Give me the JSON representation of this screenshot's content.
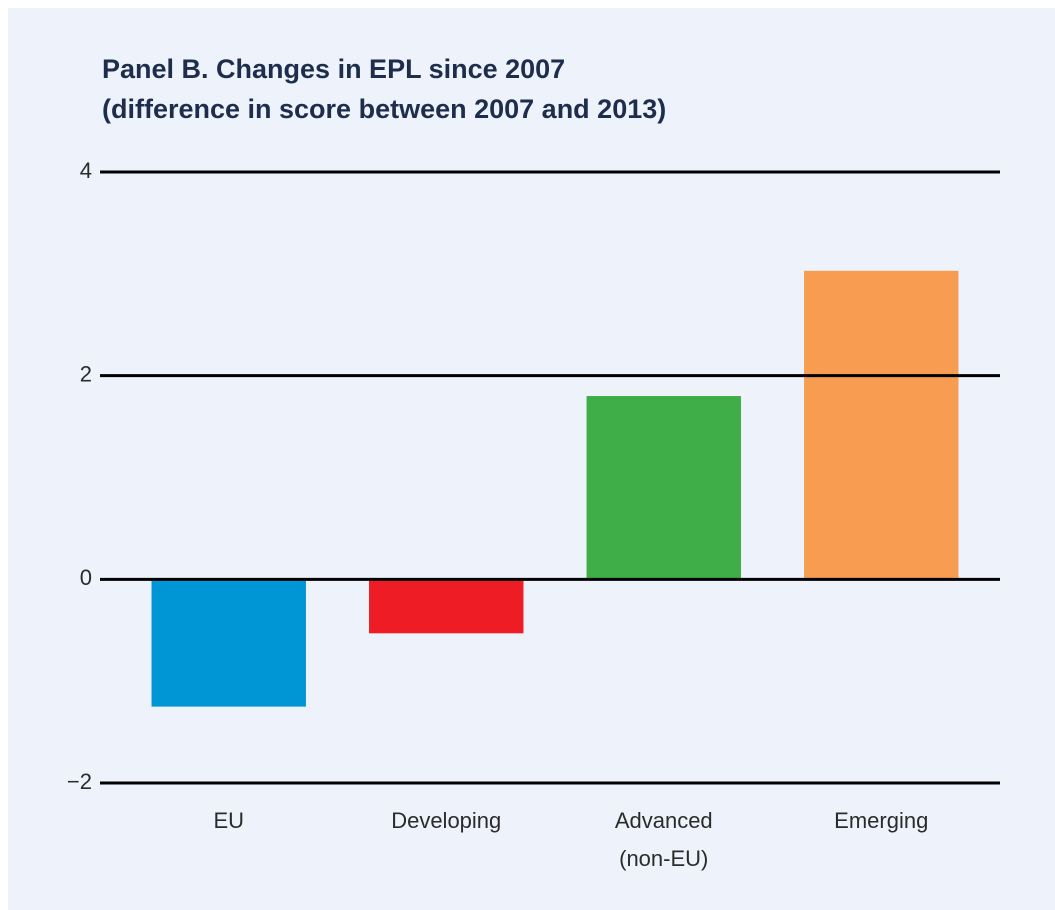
{
  "chart_data": {
    "type": "bar",
    "title": "Panel B.  Changes in EPL since 2007",
    "subtitle": "(difference in score between 2007 and 2013)",
    "categories": [
      "EU",
      "Developing",
      "Advanced (non-EU)",
      "Emerging"
    ],
    "values": [
      -1.25,
      -0.53,
      1.8,
      3.03
    ],
    "colors": [
      "#0096d6",
      "#ee1c25",
      "#3fae49",
      "#f79c51"
    ],
    "ylim": [
      -2,
      4
    ],
    "yticks": [
      {
        "value": -2,
        "label": "−2"
      },
      0,
      2,
      4
    ],
    "grid": true
  }
}
